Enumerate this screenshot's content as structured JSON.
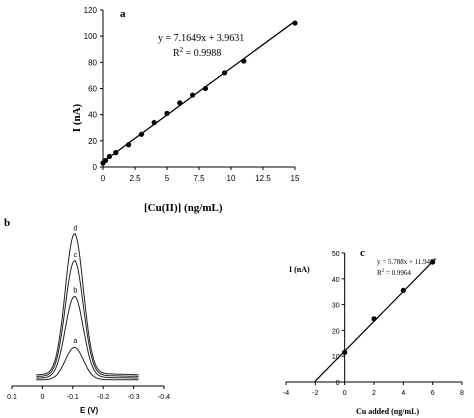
{
  "chart_data": [
    {
      "panel": "a",
      "type": "scatter",
      "xlabel": "[Cu(II)] (ng/mL)",
      "ylabel": "I (nA)",
      "xlim": [
        0,
        15
      ],
      "ylim": [
        0,
        120
      ],
      "xticks": [
        "0",
        "2.5",
        "5",
        "7.5",
        "10",
        "12.5",
        "15"
      ],
      "yticks": [
        "0",
        "20",
        "40",
        "60",
        "80",
        "100",
        "120"
      ],
      "equation": "y = 7.1649x + 3.9631",
      "r2_prefix": "R",
      "r2_sup": "2",
      "r2_value": " = 0.9988",
      "fit": {
        "slope": 7.1649,
        "intercept": 3.9631,
        "x_range": [
          0,
          15
        ]
      },
      "points": {
        "x": [
          0,
          0.2,
          0.5,
          1,
          2,
          3,
          4,
          5,
          6,
          7,
          8,
          9.5,
          11,
          15
        ],
        "y": [
          3,
          5,
          8,
          11,
          17,
          25,
          34,
          41,
          49,
          55,
          60,
          72,
          81,
          110
        ]
      }
    },
    {
      "panel": "b",
      "type": "line",
      "xlabel": "E (V)",
      "xlim": [
        0.1,
        -0.4
      ],
      "xticks": [
        "0.1",
        "0",
        "-0.1",
        "-0.2",
        "-0.3",
        "-0.4"
      ],
      "series": [
        {
          "name": "a",
          "peak": 0.23
        },
        {
          "name": "b",
          "peak": 0.58
        },
        {
          "name": "c",
          "peak": 0.82
        },
        {
          "name": "d",
          "peak": 1.0
        }
      ]
    },
    {
      "panel": "c",
      "type": "scatter",
      "xlabel": "Cu added (ng/mL)",
      "ylabel": "I (nA)",
      "xlim": [
        -4,
        8
      ],
      "ylim": [
        0,
        50
      ],
      "xticks": [
        "-4",
        "-2",
        "0",
        "2",
        "4",
        "6",
        "8"
      ],
      "yticks": [
        "0",
        "10",
        "20",
        "30",
        "40",
        "50"
      ],
      "equation": "y = 5.788x + 11.946",
      "r2_prefix": "R",
      "r2_sup": "2",
      "r2_value": " = 0.9964",
      "fit": {
        "slope": 5.788,
        "intercept": 11.946,
        "x_range": [
          -2.06,
          6.2
        ]
      },
      "points": {
        "x": [
          0,
          2,
          4,
          6
        ],
        "y": [
          11.5,
          24.5,
          35.5,
          46.5
        ]
      }
    }
  ]
}
